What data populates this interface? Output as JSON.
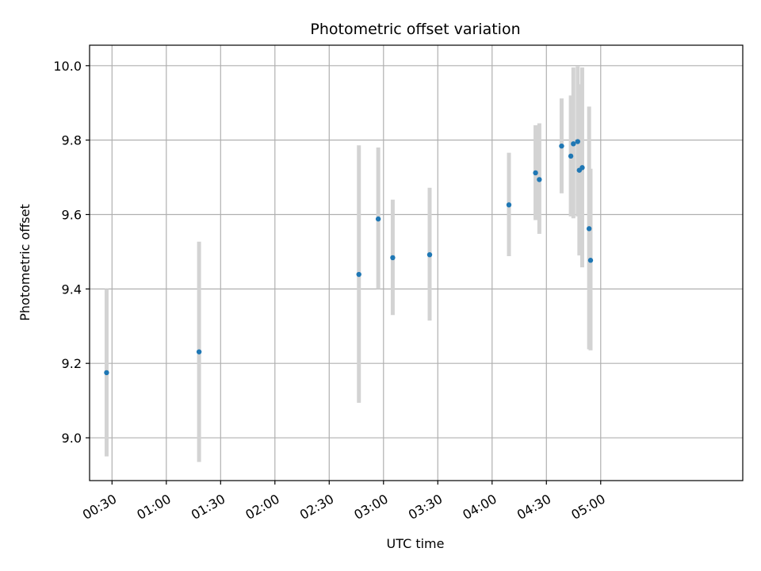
{
  "chart_data": {
    "type": "scatter",
    "title": "Photometric offset variation",
    "xlabel": "UTC time",
    "ylabel": "Photometric offset",
    "x_unit": "minutes since 00:00 UTC",
    "xlim": [
      17.6,
      378.5
    ],
    "ylim": [
      8.885,
      10.055
    ],
    "grid": true,
    "x_ticks": [
      {
        "value": 30,
        "label": "00:30"
      },
      {
        "value": 60,
        "label": "01:00"
      },
      {
        "value": 90,
        "label": "01:30"
      },
      {
        "value": 120,
        "label": "02:00"
      },
      {
        "value": 150,
        "label": "02:30"
      },
      {
        "value": 180,
        "label": "03:00"
      },
      {
        "value": 210,
        "label": "03:30"
      },
      {
        "value": 240,
        "label": "04:00"
      },
      {
        "value": 270,
        "label": "04:30"
      },
      {
        "value": 300,
        "label": "05:00"
      }
    ],
    "y_ticks": [
      {
        "value": 9.0,
        "label": "9.0"
      },
      {
        "value": 9.2,
        "label": "9.2"
      },
      {
        "value": 9.4,
        "label": "9.4"
      },
      {
        "value": 9.6,
        "label": "9.6"
      },
      {
        "value": 9.8,
        "label": "9.8"
      },
      {
        "value": 10.0,
        "label": "10.0"
      }
    ],
    "colors": {
      "point": "#1f77b4",
      "errorbar": "#d3d3d3",
      "grid": "#b0b0b0",
      "axis": "#000000"
    },
    "points": [
      {
        "x": 27.0,
        "y": 9.175,
        "yerr_low": 8.95,
        "yerr_high": 9.4
      },
      {
        "x": 78.1,
        "y": 9.231,
        "yerr_low": 8.935,
        "yerr_high": 9.527
      },
      {
        "x": 166.4,
        "y": 9.439,
        "yerr_low": 9.094,
        "yerr_high": 9.786
      },
      {
        "x": 177.1,
        "y": 9.588,
        "yerr_low": 9.4,
        "yerr_high": 9.78
      },
      {
        "x": 185.1,
        "y": 9.484,
        "yerr_low": 9.33,
        "yerr_high": 9.64
      },
      {
        "x": 205.5,
        "y": 9.492,
        "yerr_low": 9.315,
        "yerr_high": 9.672
      },
      {
        "x": 249.3,
        "y": 9.626,
        "yerr_low": 9.488,
        "yerr_high": 9.766
      },
      {
        "x": 264.0,
        "y": 9.712,
        "yerr_low": 9.585,
        "yerr_high": 9.84
      },
      {
        "x": 266.1,
        "y": 9.694,
        "yerr_low": 9.548,
        "yerr_high": 9.845
      },
      {
        "x": 278.4,
        "y": 9.784,
        "yerr_low": 9.657,
        "yerr_high": 9.912
      },
      {
        "x": 283.5,
        "y": 9.757,
        "yerr_low": 9.595,
        "yerr_high": 9.92
      },
      {
        "x": 284.9,
        "y": 9.79,
        "yerr_low": 9.59,
        "yerr_high": 9.995
      },
      {
        "x": 287.3,
        "y": 9.796,
        "yerr_low": 9.595,
        "yerr_high": 9.998
      },
      {
        "x": 288.2,
        "y": 9.719,
        "yerr_low": 9.49,
        "yerr_high": 9.95
      },
      {
        "x": 289.8,
        "y": 9.726,
        "yerr_low": 9.458,
        "yerr_high": 9.995
      },
      {
        "x": 293.6,
        "y": 9.562,
        "yerr_low": 9.238,
        "yerr_high": 9.89
      },
      {
        "x": 294.4,
        "y": 9.477,
        "yerr_low": 9.235,
        "yerr_high": 9.723
      }
    ]
  }
}
